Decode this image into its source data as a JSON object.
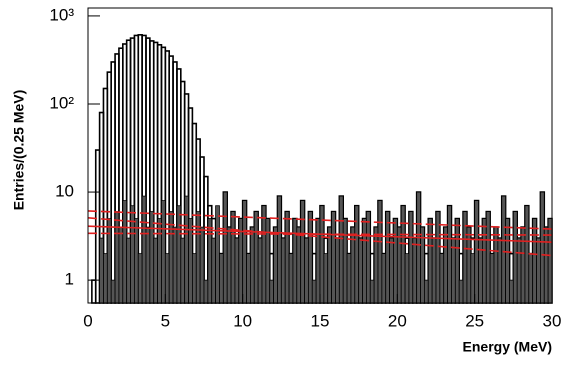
{
  "chart_data": {
    "type": "histogram",
    "x_label": "Energy (MeV)",
    "y_label": "Entries/(0.25 MeV)",
    "xlim": [
      0,
      30
    ],
    "ylim": [
      0.55,
      1230
    ],
    "log_y": true,
    "xticks": [
      0,
      5,
      10,
      15,
      20,
      25,
      30
    ],
    "yticks": [
      1,
      10,
      {
        "value": 100,
        "label": "10²"
      },
      {
        "value": 1000,
        "label": "10³"
      }
    ],
    "bins": [
      0,
      0.25,
      0.5,
      0.75,
      1,
      1.25,
      1.5,
      1.75,
      2,
      2.25,
      2.5,
      2.75,
      3,
      3.25,
      3.5,
      3.75,
      4,
      4.25,
      4.5,
      4.75,
      5,
      5.25,
      5.5,
      5.75,
      6,
      6.25,
      6.5,
      6.75,
      7,
      7.25,
      7.5,
      7.75,
      8,
      8.25,
      8.5,
      8.75,
      9,
      9.25,
      9.5,
      9.75,
      10,
      10.25,
      10.5,
      10.75,
      11,
      11.25,
      11.5,
      11.75,
      12,
      12.25,
      12.5,
      12.75,
      13,
      13.25,
      13.5,
      13.75,
      14,
      14.25,
      14.5,
      14.75,
      15,
      15.25,
      15.5,
      15.75,
      16,
      16.25,
      16.5,
      16.75,
      17,
      17.25,
      17.5,
      17.75,
      18,
      18.25,
      18.5,
      18.75,
      19,
      19.25,
      19.5,
      19.75,
      20,
      20.25,
      20.5,
      20.75,
      21,
      21.25,
      21.5,
      21.75,
      22,
      22.25,
      22.5,
      22.75,
      23,
      23.25,
      23.5,
      23.75,
      24,
      24.25,
      24.5,
      24.75,
      25,
      25.25,
      25.5,
      25.75,
      26,
      26.25,
      26.5,
      26.75,
      27,
      27.25,
      27.5,
      27.75,
      28,
      28.25,
      28.5,
      28.75,
      29,
      29.25,
      29.5,
      29.75,
      30
    ],
    "series": [
      {
        "style": "outline",
        "color": "#000000",
        "values": [
          0,
          1,
          30,
          80,
          150,
          230,
          300,
          370,
          430,
          480,
          530,
          560,
          600,
          610,
          600,
          560,
          520,
          500,
          470,
          440,
          400,
          350,
          300,
          250,
          180,
          130,
          90,
          60,
          40,
          25,
          15,
          7,
          5,
          2,
          2,
          10,
          4,
          6,
          3,
          5,
          8,
          2,
          4,
          6,
          3,
          7,
          5,
          2,
          4,
          9,
          3,
          6,
          2,
          5,
          4,
          8,
          3,
          6,
          2,
          5,
          7,
          3,
          4,
          6,
          3,
          9,
          5,
          2,
          4,
          7,
          3,
          5,
          6,
          2,
          4,
          8,
          2,
          6,
          3,
          5,
          4,
          7,
          3,
          6,
          3,
          10,
          4,
          2,
          5,
          3,
          6,
          2,
          4,
          7,
          3,
          5,
          2,
          6,
          4,
          3,
          8,
          3,
          5,
          6,
          2,
          4,
          3,
          9,
          5,
          2,
          6,
          3,
          4,
          7,
          2,
          5,
          3,
          10,
          4,
          5
        ]
      },
      {
        "style": "filled",
        "color": "#555555",
        "values": [
          0,
          0,
          0,
          3,
          2,
          5,
          1,
          6,
          4,
          8,
          3,
          7,
          5,
          2,
          9,
          4,
          6,
          3,
          5,
          8,
          2,
          6,
          4,
          7,
          3,
          9,
          5,
          2,
          6,
          4,
          1,
          5,
          3,
          7,
          2,
          10,
          4,
          6,
          3,
          5,
          8,
          2,
          4,
          6,
          3,
          7,
          5,
          1,
          4,
          9,
          3,
          6,
          2,
          5,
          4,
          8,
          3,
          6,
          1,
          5,
          7,
          2,
          4,
          6,
          3,
          9,
          5,
          2,
          4,
          7,
          3,
          5,
          6,
          1,
          4,
          8,
          2,
          6,
          3,
          5,
          4,
          7,
          2,
          6,
          3,
          10,
          4,
          1,
          5,
          3,
          6,
          2,
          4,
          7,
          3,
          5,
          1,
          6,
          4,
          2,
          8,
          3,
          5,
          6,
          2,
          4,
          3,
          9,
          5,
          1,
          6,
          3,
          4,
          7,
          2,
          5,
          3,
          10,
          4,
          5
        ]
      }
    ],
    "fit_x": [
      0,
      30
    ],
    "fit_lines": [
      {
        "style": "dashed",
        "color": "#e02020",
        "values": [
          6.1,
          3.8
        ]
      },
      {
        "style": "dashed",
        "color": "#e02020",
        "values": [
          5.1,
          1.9
        ]
      },
      {
        "style": "solid",
        "color": "#e02020",
        "values": [
          4.1,
          2.7
        ]
      },
      {
        "style": "dashed",
        "color": "#e02020",
        "values": [
          3.4,
          3.25
        ]
      }
    ]
  }
}
